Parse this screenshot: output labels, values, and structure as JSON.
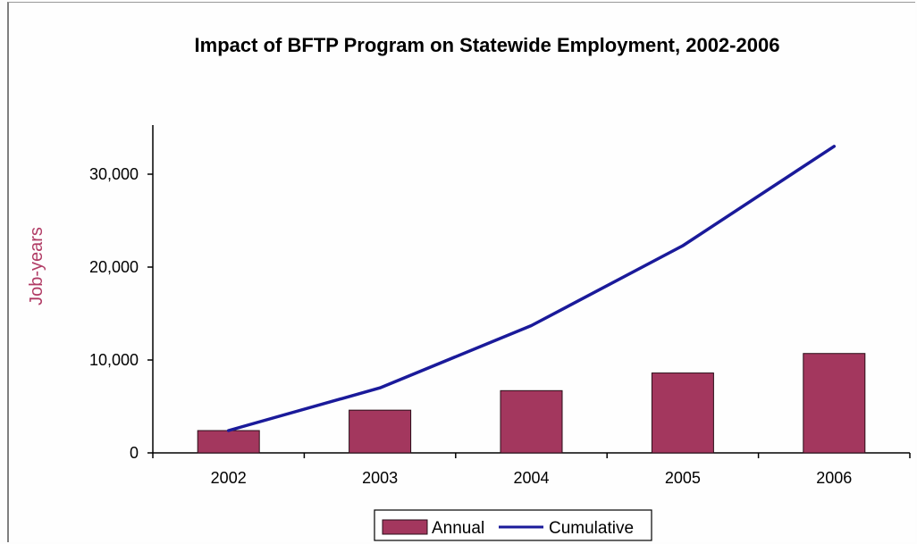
{
  "colors": {
    "bar": "#a3375e",
    "bar_stroke": "#2a0d18",
    "line": "#1a1a9a",
    "ylabel": "#b03a64",
    "axis": "#000000"
  },
  "chart_data": {
    "type": "bar",
    "title": "Impact of BFTP Program on Statewide Employment, 2002-2006",
    "xlabel": "",
    "ylabel": "Job-years",
    "categories": [
      "2002",
      "2003",
      "2004",
      "2005",
      "2006"
    ],
    "ylim": [
      0,
      35000
    ],
    "yticks": [
      0,
      10000,
      20000,
      30000
    ],
    "ytick_labels": [
      "0",
      "10,000",
      "20,000",
      "30,000"
    ],
    "grid": false,
    "legend_position": "bottom",
    "series": [
      {
        "name": "Annual",
        "kind": "bar",
        "values": [
          2400,
          4600,
          6700,
          8600,
          10700
        ]
      },
      {
        "name": "Cumulative",
        "kind": "line",
        "values": [
          2400,
          7000,
          13700,
          22300,
          33000
        ]
      }
    ]
  }
}
